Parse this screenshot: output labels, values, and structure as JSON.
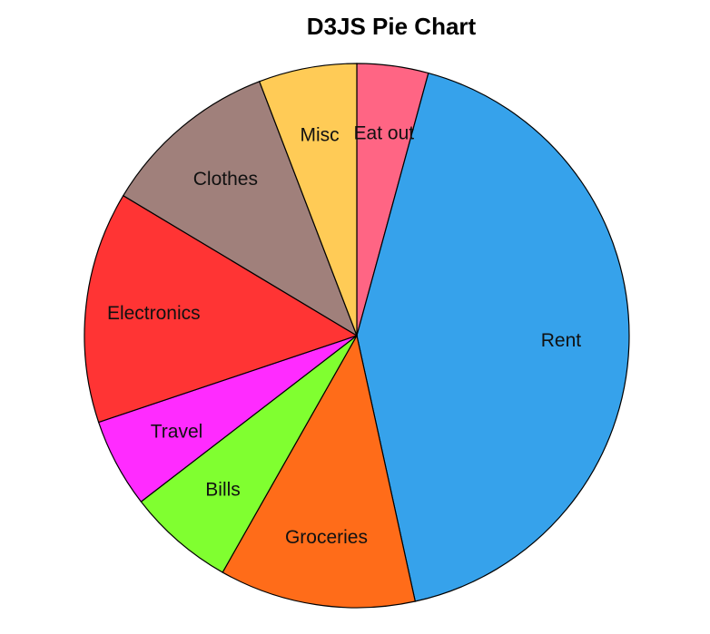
{
  "chart_data": {
    "type": "pie",
    "title": "D3JS Pie Chart",
    "slices": [
      {
        "label": "Eat out",
        "value": 4,
        "color": "#ff6584"
      },
      {
        "label": "Rent",
        "value": 40,
        "color": "#36a2eb"
      },
      {
        "label": "Groceries",
        "value": 11,
        "color": "#ff6c19"
      },
      {
        "label": "Bills",
        "value": 6,
        "color": "#80ff30"
      },
      {
        "label": "Travel",
        "value": 5,
        "color": "#ff2bff"
      },
      {
        "label": "Electronics",
        "value": 13,
        "color": "#ff3434"
      },
      {
        "label": "Clothes",
        "value": 10,
        "color": "#a0807b"
      },
      {
        "label": "Misc",
        "value": 5.5,
        "color": "#ffcb56"
      }
    ]
  }
}
